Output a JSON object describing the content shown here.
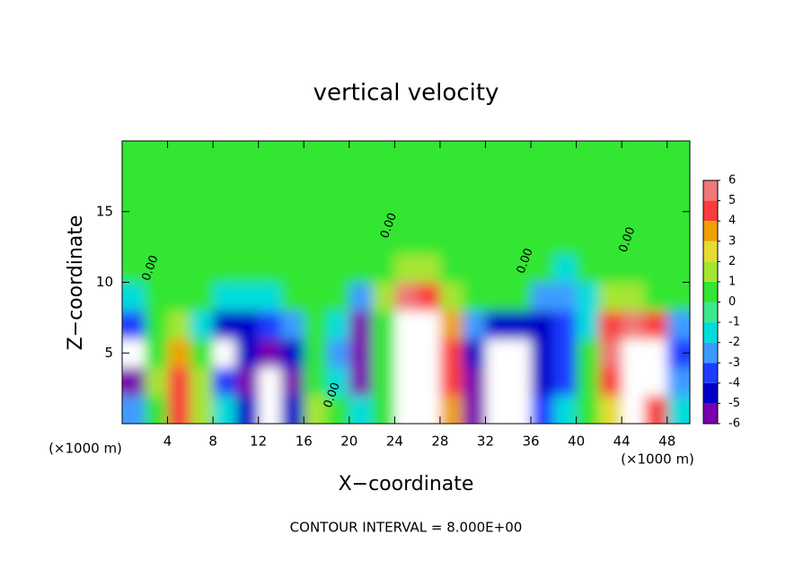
{
  "chart_data": {
    "type": "contour",
    "title": "vertical velocity",
    "x_label": "X−coordinate",
    "y_label": "Z−coordinate",
    "x_unit_labels": [
      "(×1000 m)",
      "(×1000 m)"
    ],
    "footer": "CONTOUR INTERVAL = 8.000E+00",
    "xlim": [
      0,
      50
    ],
    "ylim": [
      0,
      20
    ],
    "xticks": [
      4,
      8,
      12,
      16,
      20,
      24,
      28,
      32,
      36,
      40,
      44,
      48
    ],
    "yticks": [
      5,
      10,
      15
    ],
    "x": [
      1,
      3,
      5,
      7,
      9,
      11,
      13,
      15,
      17,
      19,
      21,
      23,
      25,
      27,
      29,
      31,
      33,
      35,
      37,
      39,
      41,
      43,
      45,
      47,
      49
    ],
    "y": [
      1,
      3,
      5,
      7,
      9,
      11,
      13,
      15,
      17,
      19
    ],
    "z": [
      [
        -2,
        1,
        4.5,
        2,
        -1,
        -4,
        -7,
        -4,
        2,
        0.5,
        -1,
        0.5,
        8,
        8,
        4,
        -5,
        -8,
        -7,
        -3,
        -1,
        0.5,
        3,
        8,
        5,
        -1
      ],
      [
        -5,
        2,
        5,
        2,
        -3,
        -5,
        -8,
        -6,
        0.5,
        -1,
        -5,
        0.5,
        9,
        9,
        5,
        -5,
        -9,
        -8,
        -4,
        -3,
        0.5,
        5,
        9,
        8,
        -2
      ],
      [
        -8,
        1,
        4,
        1,
        -7,
        -4,
        -5,
        -4,
        0.5,
        -2,
        -6,
        1,
        9,
        9,
        5,
        -4,
        -8,
        -8,
        -4,
        -3,
        0.5,
        6,
        9,
        8,
        -3
      ],
      [
        -3,
        0.5,
        2,
        -1,
        -4,
        -4,
        -3,
        -2,
        0.5,
        -1,
        -5,
        1,
        8,
        8,
        4,
        -2,
        -4,
        -4,
        -4,
        -3,
        -1,
        5,
        6,
        5,
        -2
      ],
      [
        -1,
        0.5,
        0.5,
        0.5,
        -1,
        -1,
        -1,
        0.5,
        0.5,
        0.5,
        -2,
        2,
        6,
        5,
        2,
        0.5,
        1,
        0.5,
        -2,
        -2,
        -1,
        1.5,
        2,
        1,
        0.5
      ],
      [
        0.5,
        0.5,
        0.5,
        0.5,
        0.5,
        0.5,
        0.5,
        0.5,
        0.5,
        0.5,
        0.5,
        1,
        2,
        2,
        1,
        0.5,
        0.5,
        1,
        0.5,
        -1,
        0.5,
        0.5,
        0.5,
        0.5,
        0.5
      ],
      [
        0.5,
        0.5,
        0.5,
        0.5,
        0.5,
        0.5,
        0.5,
        0.5,
        0.5,
        0.5,
        0.5,
        0.5,
        1,
        1,
        1,
        1,
        1,
        0.5,
        0.5,
        0.5,
        0.5,
        0.5,
        0.5,
        0.5,
        0.5
      ],
      [
        0.5,
        0.5,
        0.5,
        0.5,
        0.5,
        0.5,
        0.5,
        0.5,
        0.5,
        0.5,
        0.5,
        0.5,
        0.5,
        1,
        1,
        1,
        0.5,
        0.5,
        0.5,
        0.5,
        0.5,
        0.5,
        0.5,
        0.5,
        0.5
      ],
      [
        0.5,
        0.5,
        0.5,
        0.5,
        0.5,
        0.5,
        0.5,
        0.5,
        0.5,
        0.5,
        0.5,
        0.5,
        0.5,
        0.5,
        0.5,
        0.5,
        0.5,
        0.5,
        0.5,
        0.5,
        0.5,
        0.5,
        0.5,
        0.5,
        0.5
      ],
      [
        0.5,
        0.5,
        0.5,
        0.5,
        0.5,
        0.5,
        0.5,
        0.5,
        0.5,
        0.5,
        0.5,
        0.5,
        0.5,
        0.5,
        0.5,
        0.5,
        0.5,
        0.5,
        0.5,
        0.5,
        0.5,
        0.5,
        0.5,
        0.5,
        0.5
      ]
    ],
    "levels": [
      -6,
      -5,
      -4,
      -3,
      -2,
      -1,
      0,
      1,
      2,
      3,
      4,
      5,
      6
    ],
    "colors": [
      "#7a00b0",
      "#0000c8",
      "#1e3cff",
      "#3c9bff",
      "#00dcdc",
      "#3ce88c",
      "#32e632",
      "#a5e632",
      "#e6dc32",
      "#f0a000",
      "#fa3c3c",
      "#f07878"
    ],
    "extend_color": "#ffffff",
    "contour_labels": [
      {
        "text": "0.00",
        "x": 2.5,
        "z": 11
      },
      {
        "text": "0.00",
        "x": 23.5,
        "z": 14
      },
      {
        "text": "0.00",
        "x": 35.5,
        "z": 11.5
      },
      {
        "text": "0.00",
        "x": 44.5,
        "z": 13
      },
      {
        "text": "0.00",
        "x": 18.5,
        "z": 2
      }
    ]
  }
}
